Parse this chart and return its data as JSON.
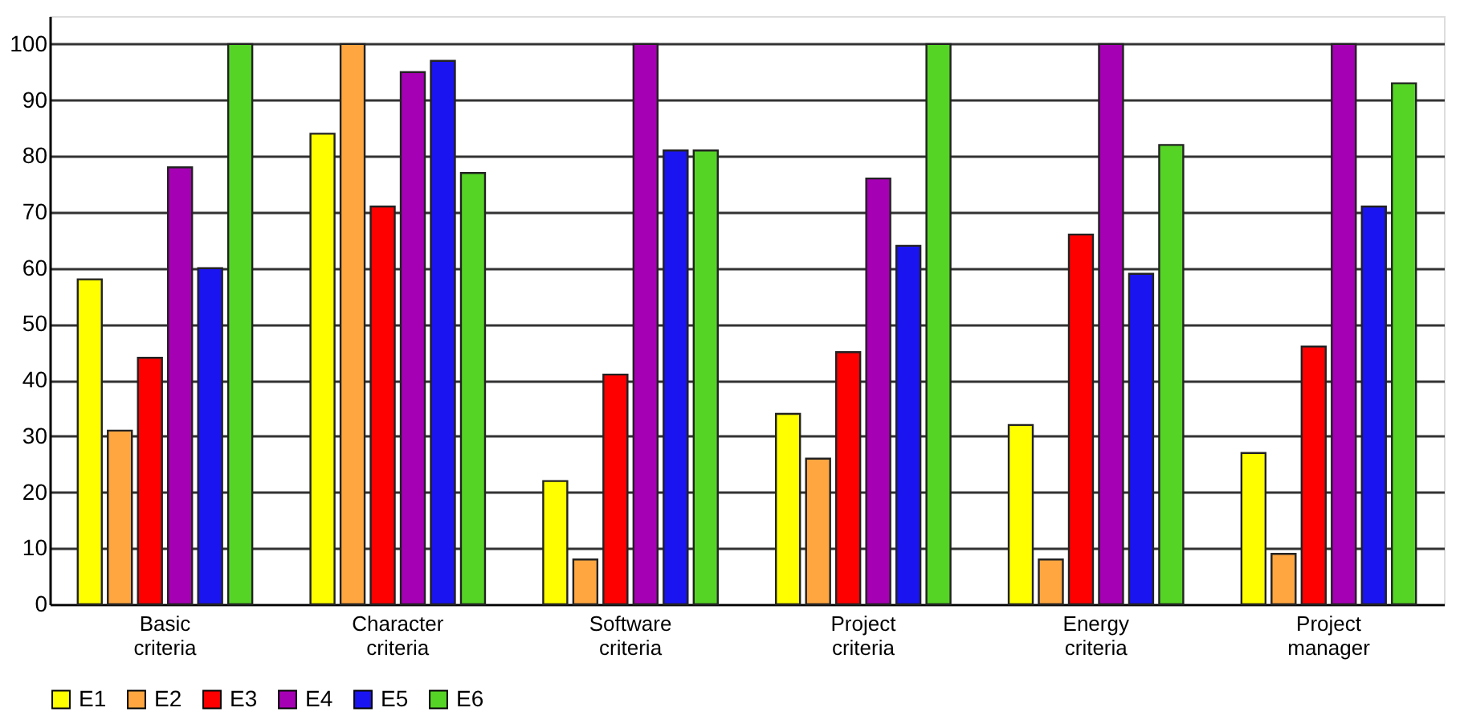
{
  "chart_data": {
    "type": "bar",
    "categories": [
      "Basic criteria",
      "Character criteria",
      "Software criteria",
      "Project criteria",
      "Energy criteria",
      "Project manager"
    ],
    "series": [
      {
        "name": "E1",
        "color": "#ffff00",
        "values": [
          58,
          84,
          22,
          34,
          32,
          27
        ]
      },
      {
        "name": "E2",
        "color": "#ffa640",
        "values": [
          31,
          100,
          8,
          26,
          8,
          9
        ]
      },
      {
        "name": "E3",
        "color": "#ff0000",
        "values": [
          44,
          71,
          41,
          45,
          66,
          46
        ]
      },
      {
        "name": "E4",
        "color": "#a600b4",
        "values": [
          78,
          95,
          100,
          76,
          100,
          100
        ]
      },
      {
        "name": "E5",
        "color": "#1a14f0",
        "values": [
          60,
          97,
          81,
          64,
          59,
          71
        ]
      },
      {
        "name": "E6",
        "color": "#55d426",
        "values": [
          100,
          77,
          81,
          100,
          82,
          93
        ]
      }
    ],
    "ylim": [
      0,
      105
    ],
    "yticks": [
      0,
      10,
      20,
      30,
      40,
      50,
      60,
      70,
      80,
      90,
      100
    ],
    "grid": "y",
    "legend": "bottom"
  }
}
